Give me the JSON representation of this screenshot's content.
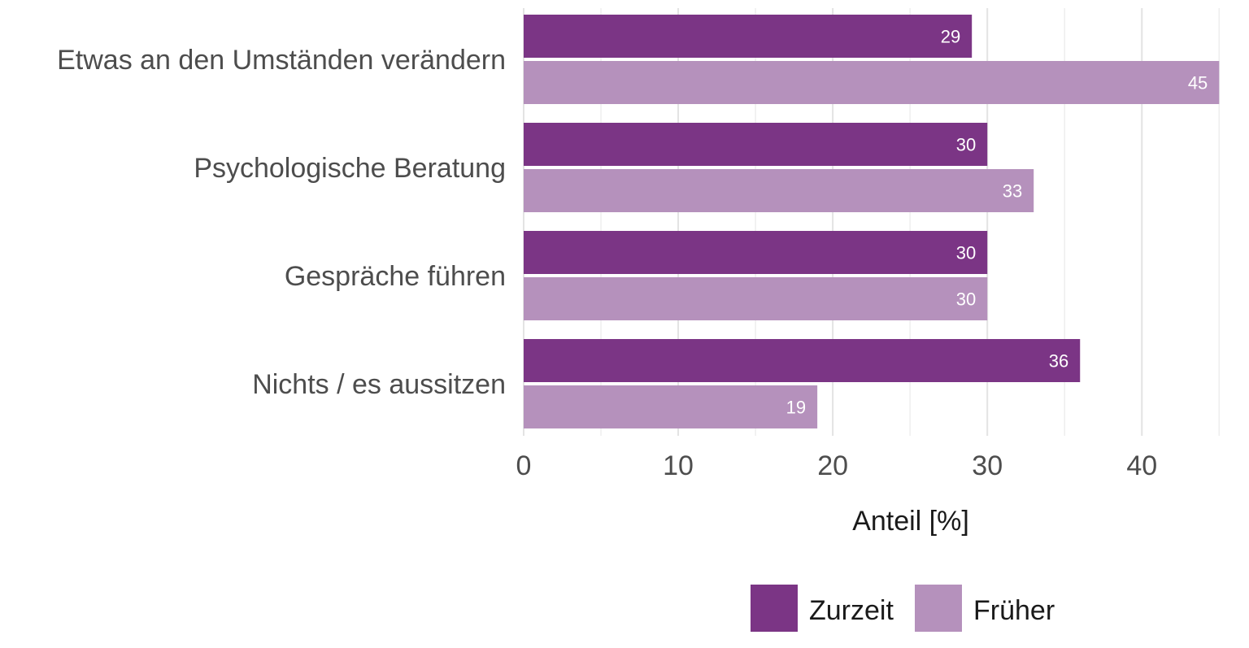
{
  "chart_data": {
    "type": "bar",
    "orientation": "horizontal",
    "categories": [
      "Etwas an den Umständen verändern",
      "Psychologische Beratung",
      "Gespräche führen",
      "Nichts / es aussitzen"
    ],
    "series": [
      {
        "name": "Zurzeit",
        "color": "#7b3585",
        "label_color": "#ffffff",
        "values": [
          29,
          30,
          30,
          36
        ],
        "labels": [
          "29",
          "30",
          "30",
          "36"
        ]
      },
      {
        "name": "Früher",
        "color": "#b591bc",
        "label_color": "#ffffff",
        "values": [
          45,
          33,
          30,
          19
        ],
        "labels": [
          "45",
          "33",
          "30",
          "19"
        ]
      }
    ],
    "xticks": [
      0,
      10,
      20,
      30,
      40
    ],
    "xtick_labels": [
      "0",
      "10",
      "20",
      "30",
      "40"
    ],
    "xlim": [
      0,
      45.3
    ],
    "xlabel": "Anteil [%]",
    "ylabel": "",
    "grid": true,
    "legend": {
      "position": "bottom",
      "entries": [
        "Zurzeit",
        "Früher"
      ]
    }
  }
}
